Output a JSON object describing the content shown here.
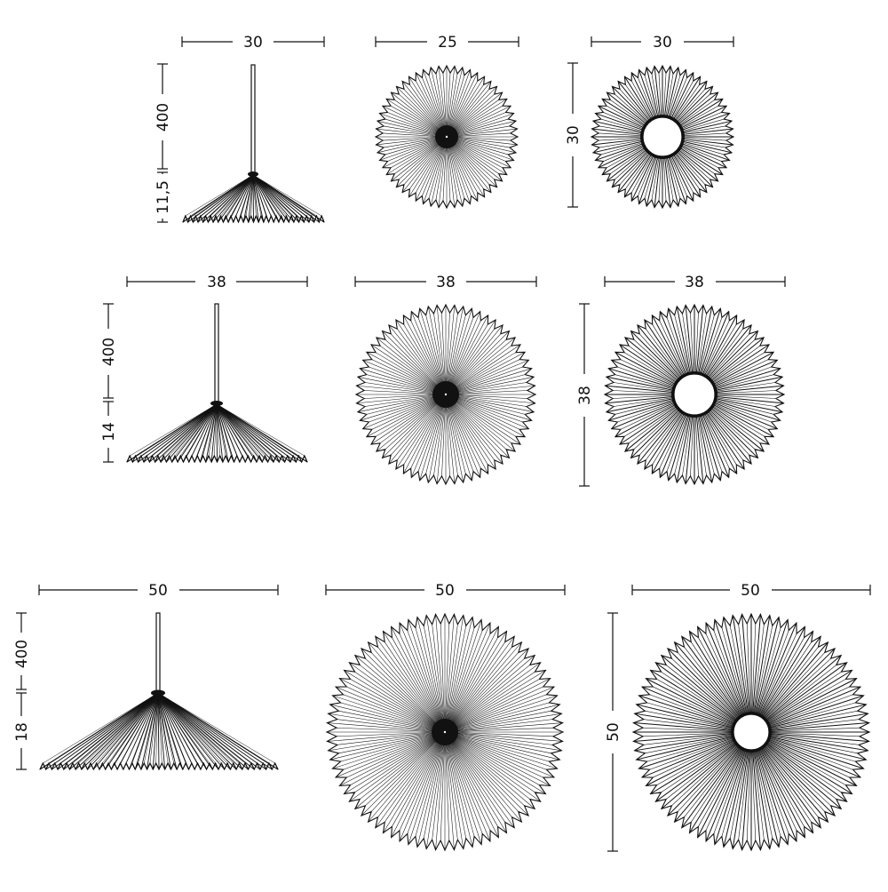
{
  "rows": [
    {
      "side_view": {
        "width_label": "30",
        "cord_label": "400",
        "height_label": "11,5"
      },
      "top_view": {
        "width_label": "25"
      },
      "bottom_view": {
        "width_label": "30",
        "height_label": "30"
      }
    },
    {
      "side_view": {
        "width_label": "38",
        "cord_label": "400",
        "height_label": "14"
      },
      "top_view": {
        "width_label": "38"
      },
      "bottom_view": {
        "width_label": "38",
        "height_label": "38"
      }
    },
    {
      "side_view": {
        "width_label": "50",
        "cord_label": "400",
        "height_label": "18"
      },
      "top_view": {
        "width_label": "50"
      },
      "bottom_view": {
        "width_label": "50",
        "height_label": "50"
      }
    }
  ],
  "colors": {
    "ink": "#111111",
    "background": "#ffffff"
  }
}
